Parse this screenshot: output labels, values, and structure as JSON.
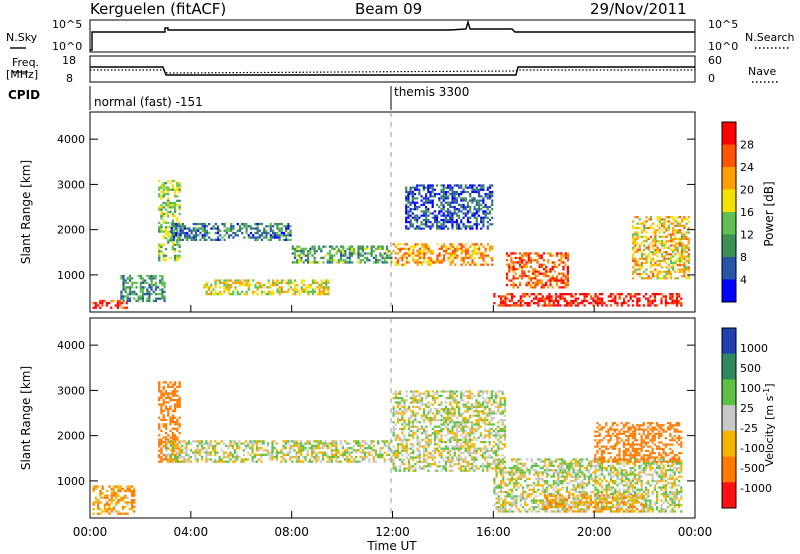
{
  "header": {
    "station": "Kerguelen (fitACF)",
    "beam": "Beam 09",
    "date": "29/Nov/2011"
  },
  "nsky_panel": {
    "left_label": "N.Sky",
    "left_ticks": [
      "10^5",
      "10^0"
    ],
    "right_ticks": [
      "10^5",
      "10^0"
    ],
    "right_label": "N.Search"
  },
  "freq_panel": {
    "left_label_line1": "Freq.",
    "left_label_line2": "[MHz]",
    "left_ticks": [
      "18",
      "8"
    ],
    "right_ticks": [
      "60",
      "0"
    ],
    "right_label": "Nave"
  },
  "cpid": {
    "label": "CPID",
    "mode1": "normal (fast) -151",
    "mode2": "themis 3300"
  },
  "axes": {
    "ylabel": "Slant Range [km]",
    "yticks": [
      "4000",
      "3000",
      "2000",
      "1000"
    ],
    "xticks": [
      "00:00",
      "04:00",
      "08:00",
      "12:00",
      "16:00",
      "20:00",
      "00:00"
    ],
    "xlabel": "Time UT"
  },
  "colors": {
    "power": [
      "#0000ff",
      "#2855a8",
      "#3d8f55",
      "#5ec24f",
      "#f2e200",
      "#ff9f00",
      "#ff5500",
      "#ff0000"
    ],
    "velocity": [
      "#2040b0",
      "#2e8a5e",
      "#5cc246",
      "#c8c8c8",
      "#f3b400",
      "#ff7a00",
      "#ff1010"
    ]
  },
  "chart_data": [
    {
      "type": "heatmap",
      "panel": "power",
      "x_range_hours": [
        0,
        24
      ],
      "ylim": [
        180,
        4600
      ],
      "colorbar_label": "Power [dB]",
      "colorbar_ticks": [
        "28",
        "24",
        "20",
        "16",
        "12",
        "8",
        "4"
      ],
      "colorbar_range": [
        0,
        32
      ],
      "regions": [
        {
          "t0": 0.1,
          "t1": 1.5,
          "r0": 250,
          "r1": 450,
          "value": 28
        },
        {
          "t0": 1.2,
          "t1": 3.0,
          "r0": 400,
          "r1": 1000,
          "value": 10
        },
        {
          "t0": 2.7,
          "t1": 3.6,
          "r0": 1300,
          "r1": 3100,
          "value": 14
        },
        {
          "t0": 3.2,
          "t1": 8.0,
          "r0": 1750,
          "r1": 2150,
          "value": 8
        },
        {
          "t0": 4.5,
          "t1": 9.5,
          "r0": 550,
          "r1": 900,
          "value": 18
        },
        {
          "t0": 8.0,
          "t1": 12.0,
          "r0": 1250,
          "r1": 1650,
          "value": 12
        },
        {
          "t0": 12.0,
          "t1": 16.0,
          "r0": 1200,
          "r1": 1700,
          "value": 22
        },
        {
          "t0": 12.5,
          "t1": 16.0,
          "r0": 2000,
          "r1": 3000,
          "value": 6
        },
        {
          "t0": 16.0,
          "t1": 23.5,
          "r0": 300,
          "r1": 600,
          "value": 30
        },
        {
          "t0": 16.5,
          "t1": 19.0,
          "r0": 700,
          "r1": 1500,
          "value": 26
        },
        {
          "t0": 21.5,
          "t1": 23.8,
          "r0": 900,
          "r1": 2300,
          "value": 20
        }
      ]
    },
    {
      "type": "heatmap",
      "panel": "velocity",
      "x_range_hours": [
        0,
        24
      ],
      "ylim": [
        180,
        4600
      ],
      "colorbar_label": "Velocity [m s^-1]",
      "colorbar_ticks": [
        "1000",
        "500",
        "100",
        "25",
        "-25",
        "-100",
        "-500",
        "-1000"
      ],
      "colorbar_range": [
        -1000,
        1000
      ],
      "regions": [
        {
          "t0": 0.1,
          "t1": 1.8,
          "r0": 250,
          "r1": 900,
          "value": -100
        },
        {
          "t0": 2.7,
          "t1": 3.6,
          "r0": 1400,
          "r1": 3200,
          "value": -300
        },
        {
          "t0": 3.0,
          "t1": 12.0,
          "r0": 1400,
          "r1": 1900,
          "value": 0
        },
        {
          "t0": 12.0,
          "t1": 16.5,
          "r0": 1200,
          "r1": 3000,
          "value": 0
        },
        {
          "t0": 16.0,
          "t1": 23.5,
          "r0": 300,
          "r1": 1500,
          "value": 0
        },
        {
          "t0": 20.0,
          "t1": 23.5,
          "r0": 1400,
          "r1": 2300,
          "value": -300
        },
        {
          "t0": 18.0,
          "t1": 22.0,
          "r0": 300,
          "r1": 700,
          "value": -80
        }
      ]
    }
  ]
}
